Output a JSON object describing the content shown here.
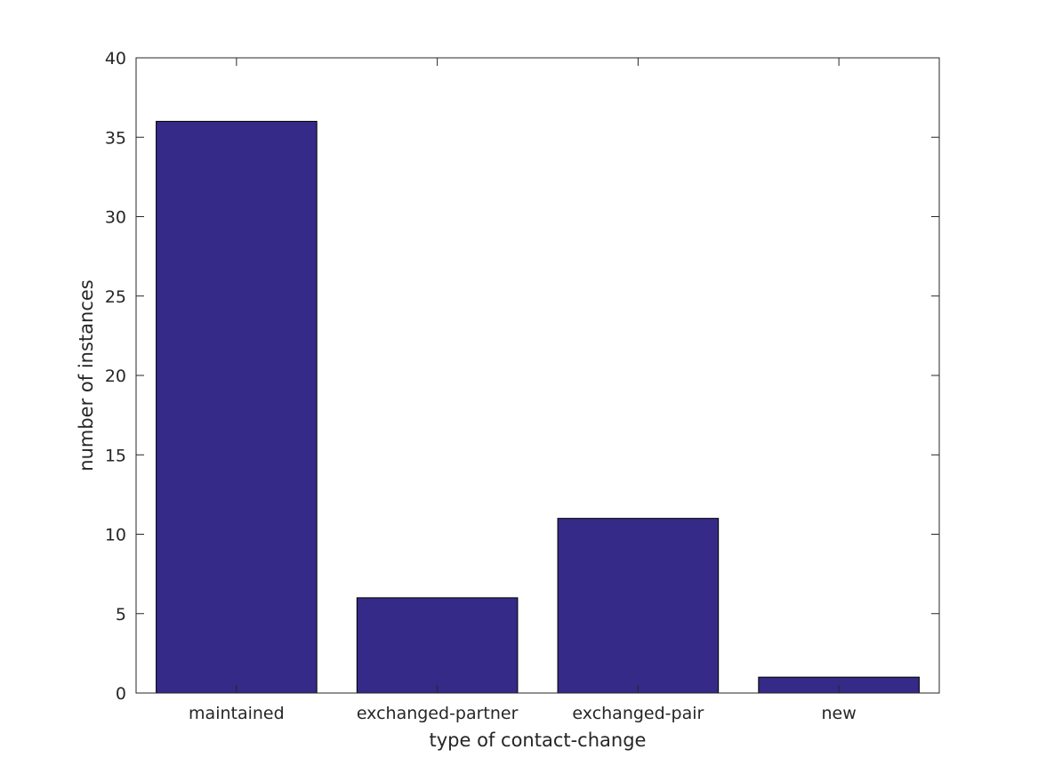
{
  "chart_data": {
    "type": "bar",
    "title": "",
    "xlabel": "type of contact-change",
    "ylabel": "number of instances",
    "categories": [
      "maintained",
      "exchanged-partner",
      "exchanged-pair",
      "new"
    ],
    "values": [
      36,
      6,
      11,
      1
    ],
    "ylim": [
      0,
      40
    ],
    "yticks": [
      0,
      5,
      10,
      15,
      20,
      25,
      30,
      35,
      40
    ],
    "ytick_labels": [
      "0",
      "5",
      "10",
      "15",
      "20",
      "25",
      "30",
      "35",
      "40"
    ],
    "grid": false,
    "legend": "none",
    "colors": {
      "bar_fill": "#352a87",
      "bar_edge": "#000000",
      "axis": "#262626",
      "text": "#262626",
      "background": "#ffffff"
    }
  }
}
